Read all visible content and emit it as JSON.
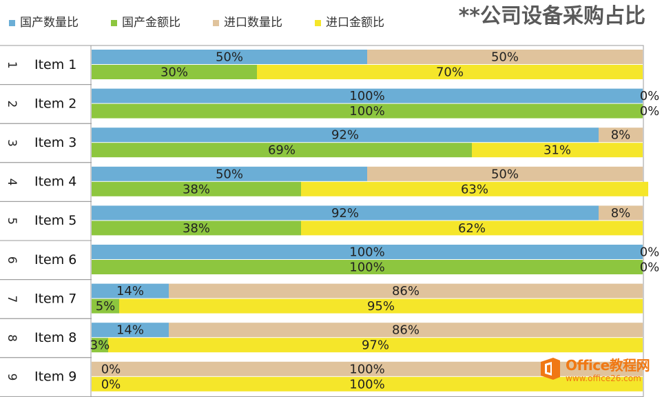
{
  "title": "**公司设备采购占比",
  "colors": {
    "domestic_qty": "#6baed6",
    "domestic_amt": "#8dc63f",
    "import_qty": "#e0c39c",
    "import_amt": "#f5e62a"
  },
  "legend": [
    {
      "label": "国产数量比",
      "color": "#6baed6"
    },
    {
      "label": "国产金额比",
      "color": "#8dc63f"
    },
    {
      "label": "进口数量比",
      "color": "#e0c39c"
    },
    {
      "label": "进口金额比",
      "color": "#f5e62a"
    }
  ],
  "chart_data": {
    "type": "bar",
    "stacked": "100%",
    "orientation": "horizontal",
    "title": "**公司设备采购占比",
    "categories": [
      "Item 1",
      "Item 2",
      "Item 3",
      "Item 4",
      "Item 5",
      "Item 6",
      "Item 7",
      "Item 8",
      "Item 9"
    ],
    "row_numbers": [
      "1",
      "2",
      "3",
      "4",
      "5",
      "6",
      "7",
      "8",
      "9"
    ],
    "series": [
      {
        "name": "国产数量比",
        "values": [
          50,
          100,
          92,
          50,
          92,
          100,
          14,
          14,
          0
        ],
        "labels": [
          "50%",
          "100%",
          "92%",
          "50%",
          "92%",
          "100%",
          "14%",
          "14%",
          "0%"
        ]
      },
      {
        "name": "进口数量比",
        "values": [
          50,
          0,
          8,
          50,
          8,
          0,
          86,
          86,
          100
        ],
        "labels": [
          "50%",
          "0%",
          "8%",
          "50%",
          "8%",
          "0%",
          "86%",
          "86%",
          "100%"
        ]
      },
      {
        "name": "国产金额比",
        "values": [
          30,
          100,
          69,
          38,
          38,
          100,
          5,
          3,
          0
        ],
        "labels": [
          "30%",
          "100%",
          "69%",
          "38%",
          "38%",
          "100%",
          "5%",
          "3%",
          "0%"
        ]
      },
      {
        "name": "进口金额比",
        "values": [
          70,
          0,
          31,
          63,
          62,
          0,
          95,
          97,
          100
        ],
        "labels": [
          "70%",
          "0%",
          "31%",
          "63%",
          "62%",
          "0%",
          "95%",
          "97%",
          "100%"
        ]
      }
    ],
    "xlim": [
      0,
      100
    ],
    "legend_position": "top-left"
  },
  "watermark": {
    "name": "Office教程网",
    "url": "www.office26.com"
  }
}
